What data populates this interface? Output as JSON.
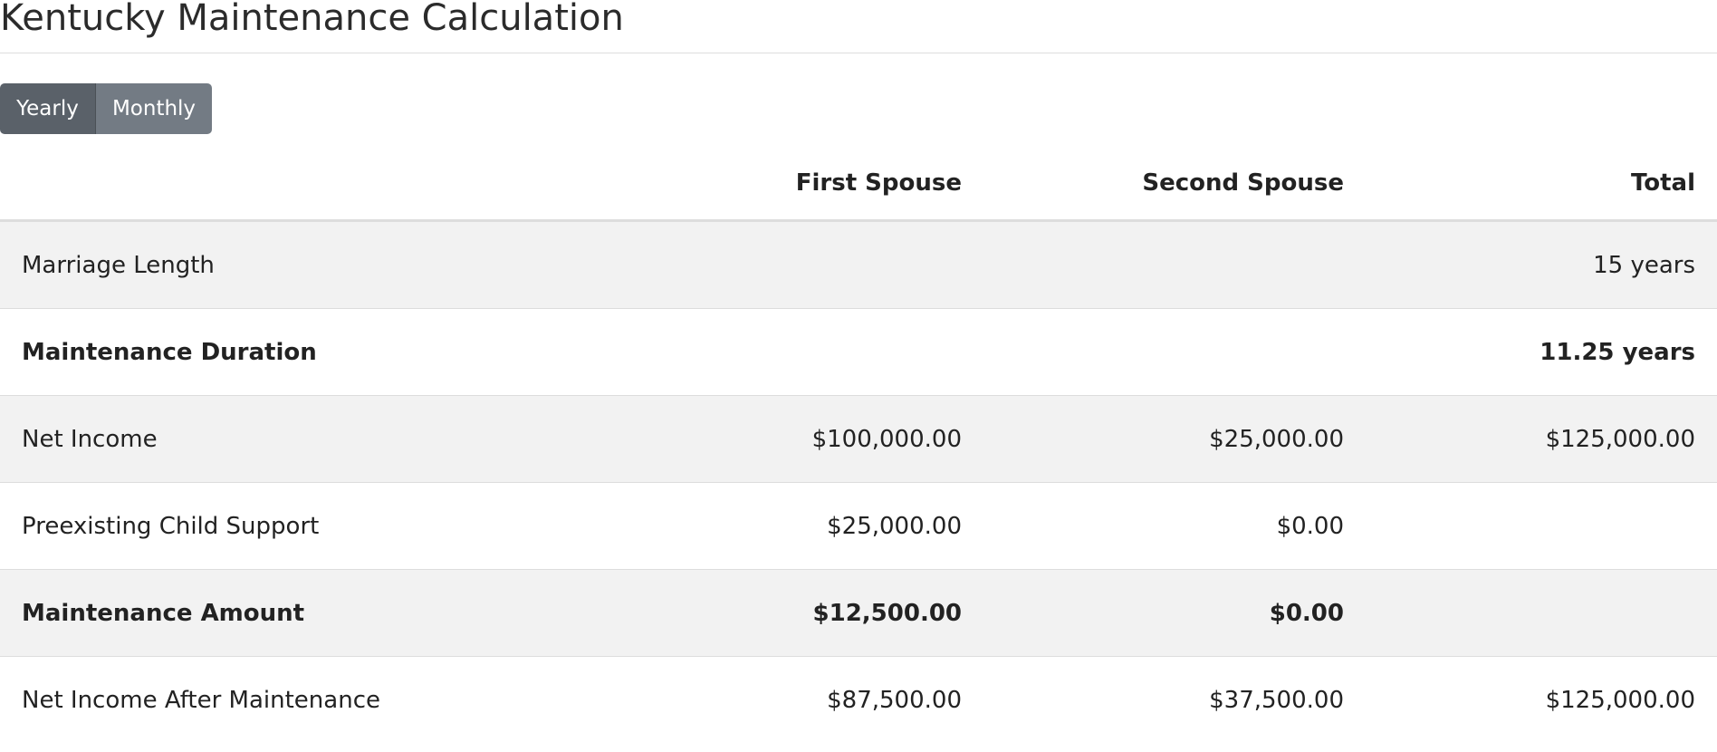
{
  "page": {
    "title": "Kentucky Maintenance Calculation"
  },
  "period_toggle": {
    "options": [
      {
        "label": "Yearly",
        "active": true
      },
      {
        "label": "Monthly",
        "active": false
      }
    ],
    "colors": {
      "active": "#5a6169",
      "inactive": "#737b84"
    }
  },
  "table": {
    "headers": {
      "label": "",
      "first_spouse": "First Spouse",
      "second_spouse": "Second Spouse",
      "total": "Total"
    },
    "rows": [
      {
        "label": "Marriage Length",
        "first": "",
        "second": "",
        "total": "15 years",
        "bold": false
      },
      {
        "label": "Maintenance Duration",
        "first": "",
        "second": "",
        "total": "11.25 years",
        "bold": true
      },
      {
        "label": "Net Income",
        "first": "$100,000.00",
        "second": "$25,000.00",
        "total": "$125,000.00",
        "bold": false
      },
      {
        "label": "Preexisting Child Support",
        "first": "$25,000.00",
        "second": "$0.00",
        "total": "",
        "bold": false
      },
      {
        "label": "Maintenance Amount",
        "first": "$12,500.00",
        "second": "$0.00",
        "total": "",
        "bold": true
      },
      {
        "label": "Net Income After Maintenance",
        "first": "$87,500.00",
        "second": "$37,500.00",
        "total": "$125,000.00",
        "bold": false
      }
    ]
  }
}
